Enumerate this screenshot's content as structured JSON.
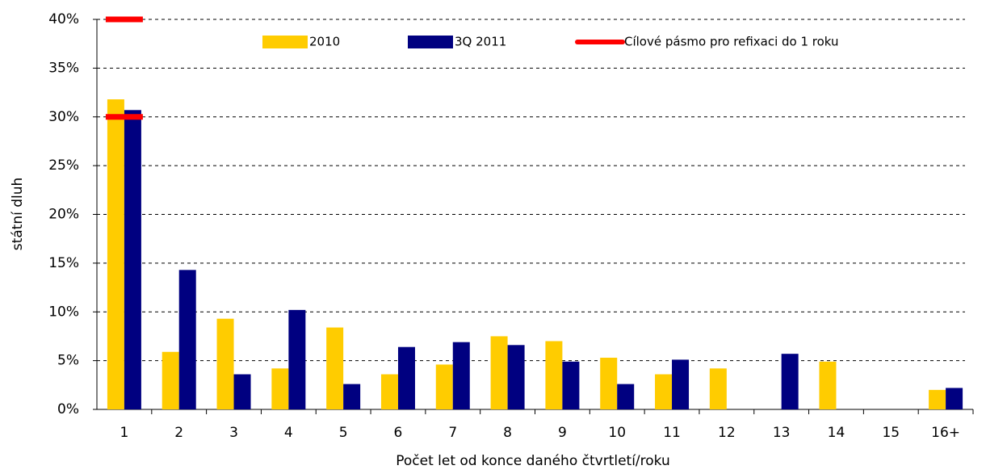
{
  "chart_data": {
    "type": "bar",
    "y_label": "státní dluh",
    "x_label": "Počet let od konce daného čtvrtletí/roku",
    "categories": [
      "1",
      "2",
      "3",
      "4",
      "5",
      "6",
      "7",
      "8",
      "9",
      "10",
      "11",
      "12",
      "13",
      "14",
      "15",
      "16+"
    ],
    "series": [
      {
        "name": "2010",
        "color": "#ffcc00",
        "values": [
          31.8,
          5.9,
          9.3,
          4.2,
          8.4,
          3.6,
          4.6,
          7.5,
          7.0,
          5.3,
          3.6,
          4.2,
          0,
          4.9,
          0,
          2.0
        ]
      },
      {
        "name": "3Q 2011",
        "color": "#000080",
        "values": [
          30.7,
          14.3,
          3.6,
          10.2,
          2.6,
          6.4,
          6.9,
          6.6,
          4.9,
          2.6,
          5.1,
          0,
          5.7,
          0,
          0,
          2.2
        ]
      }
    ],
    "target": {
      "name": "Cílové pásmo pro refixaci do 1 roku",
      "color": "#ff0000",
      "category": "1",
      "values": [
        30,
        40
      ]
    },
    "ylim": [
      0,
      40
    ],
    "yticks": [
      {
        "value": 0,
        "label": "0%"
      },
      {
        "value": 5,
        "label": "5%"
      },
      {
        "value": 10,
        "label": "10%"
      },
      {
        "value": 15,
        "label": "15%"
      },
      {
        "value": 20,
        "label": "20%"
      },
      {
        "value": 25,
        "label": "25%"
      },
      {
        "value": 30,
        "label": "30%"
      },
      {
        "value": 35,
        "label": "35%"
      },
      {
        "value": 40,
        "label": "40%"
      }
    ],
    "grid": true
  }
}
